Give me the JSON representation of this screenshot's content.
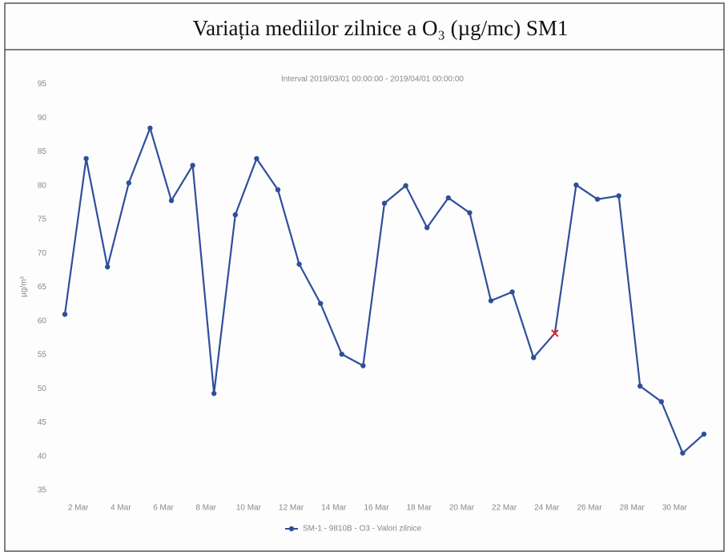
{
  "chart_data": {
    "type": "line",
    "title": "Variația mediilor zilnice a O₃ (µg/mc) SM1",
    "subtitle": "Interval 2019/03/01 00:00:00 - 2019/04/01 00:00:00",
    "y_label": "µg/m³",
    "categories": [
      null,
      "2 Mar",
      null,
      "4 Mar",
      null,
      "6 Mar",
      null,
      "8 Mar",
      null,
      "10 Mar",
      null,
      "12 Mar",
      null,
      "14 Mar",
      null,
      "16 Mar",
      null,
      "18 Mar",
      null,
      "20 Mar",
      null,
      "22 Mar",
      null,
      "24 Mar",
      null,
      "26 Mar",
      null,
      "28 Mar",
      null,
      "30 Mar",
      null
    ],
    "series": [
      {
        "name": "SM-1 - 9810B - O3 - Valori zilnice",
        "color": "#2f4f9a",
        "values": [
          61,
          84,
          68,
          80.4,
          88.5,
          77.8,
          83,
          49.3,
          75.7,
          84,
          79.4,
          68.4,
          62.6,
          55.1,
          53.4,
          77.4,
          80,
          73.8,
          78.2,
          76,
          63,
          64.3,
          54.6,
          58.2,
          80.1,
          78,
          78.5,
          50.4,
          48.1,
          40.5,
          43.3
        ]
      }
    ],
    "highlight": {
      "index": 23,
      "color": "#e02020"
    },
    "ylim": [
      35,
      95
    ],
    "yticks": [
      35,
      40,
      45,
      50,
      55,
      60,
      65,
      70,
      75,
      80,
      85,
      90,
      95
    ],
    "grid": false,
    "legend": "bottom"
  }
}
